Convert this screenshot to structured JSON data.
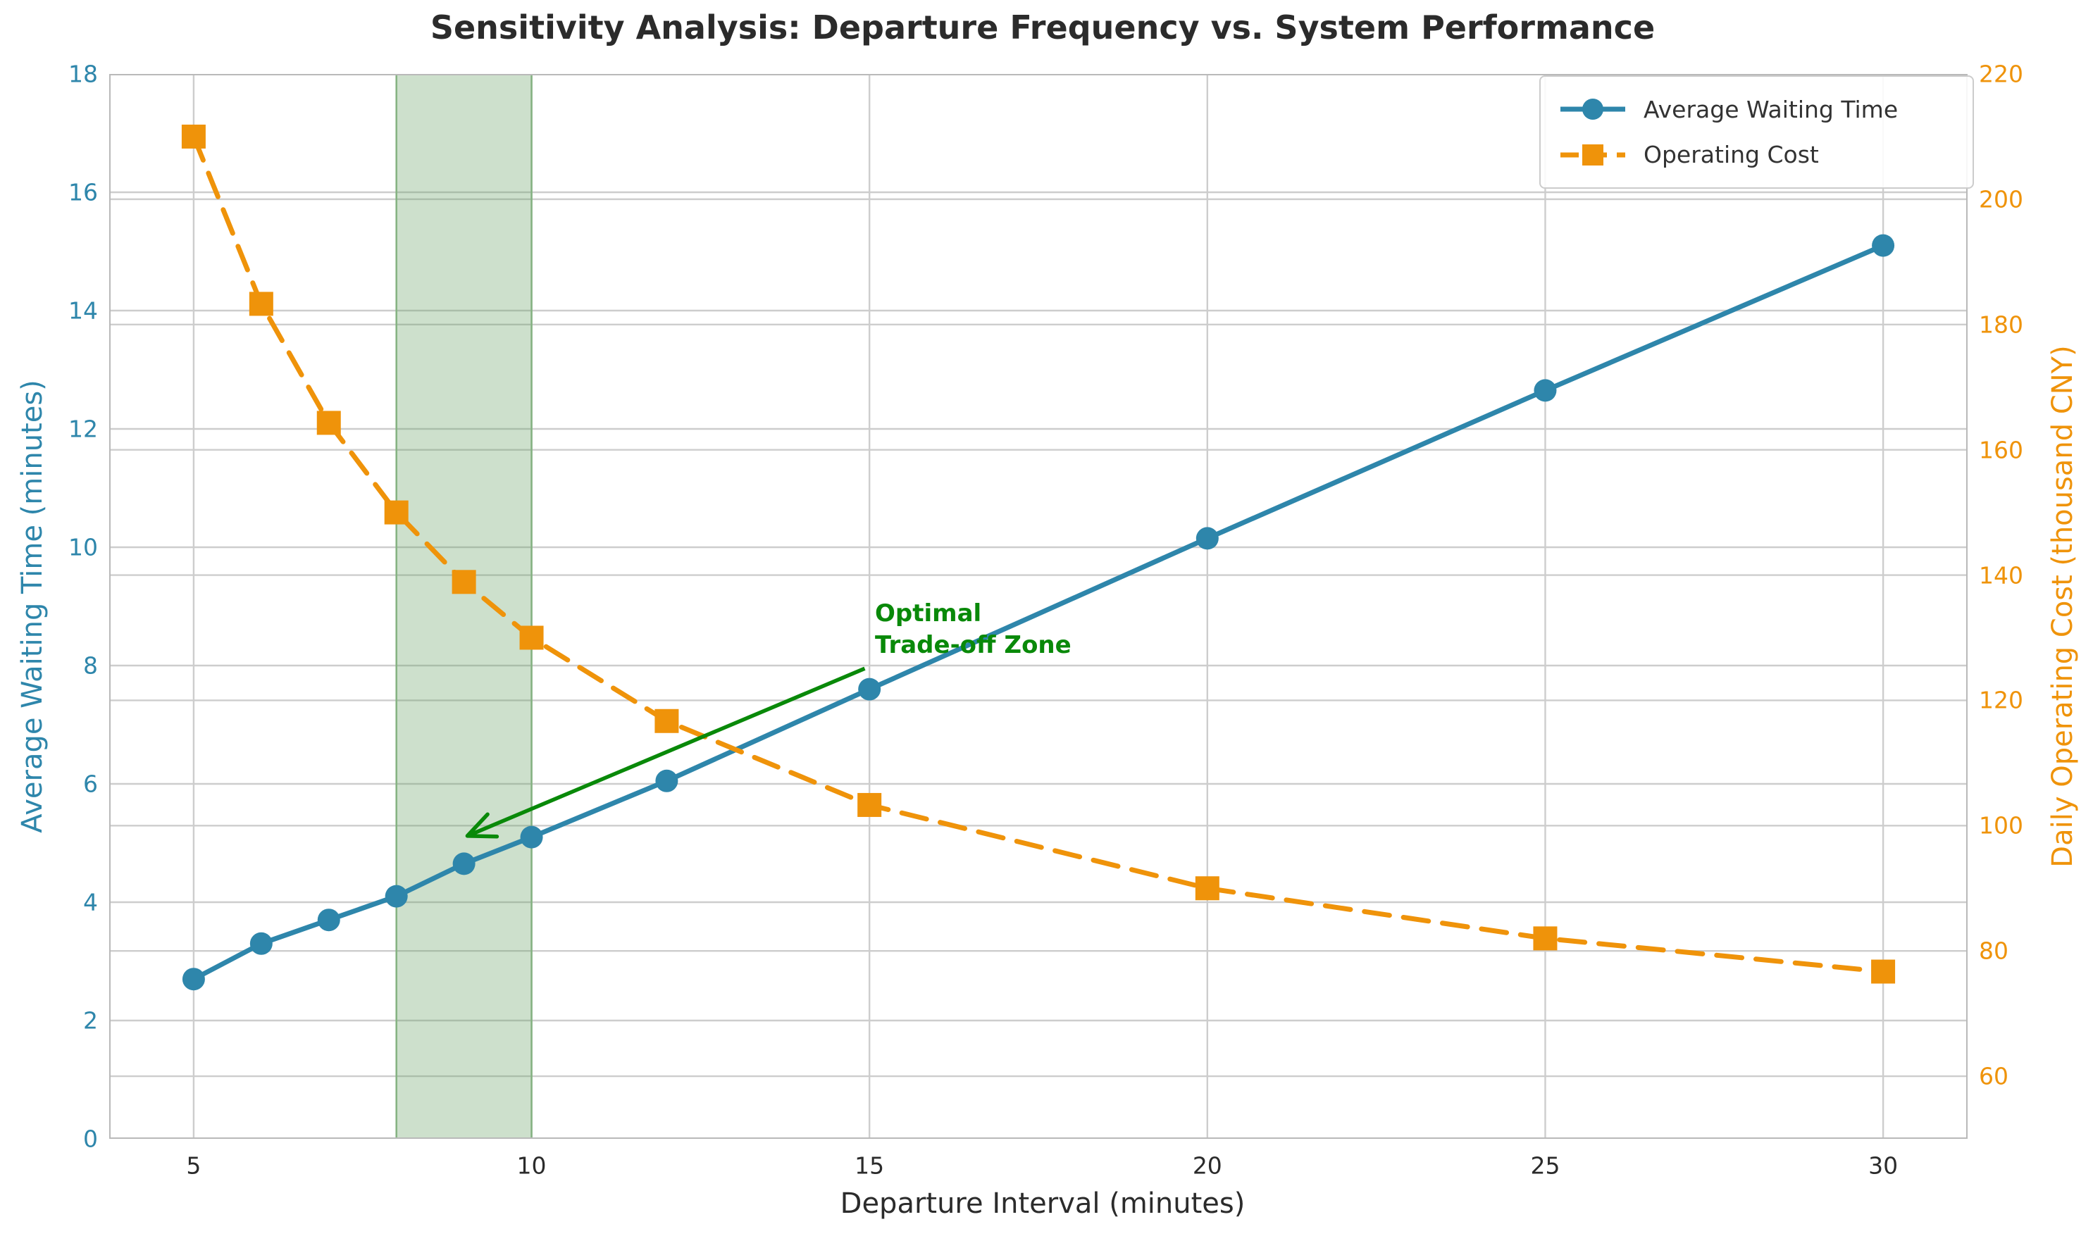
{
  "title": "Sensitivity Analysis: Departure Frequency vs. System Performance",
  "axes": {
    "x": {
      "label": "Departure Interval (minutes)",
      "min": 3.75,
      "max": 31.25,
      "ticks": [
        5,
        10,
        15,
        20,
        25,
        30
      ]
    },
    "y_left": {
      "label": "Average Waiting Time (minutes)",
      "min": 0,
      "max": 18,
      "ticks": [
        0,
        2,
        4,
        6,
        8,
        10,
        12,
        14,
        16,
        18
      ],
      "color": "#2E86AB"
    },
    "y_right": {
      "label": "Daily Operating Cost (thousand CNY)",
      "min": 50,
      "max": 220,
      "ticks": [
        60,
        80,
        100,
        120,
        140,
        160,
        180,
        200,
        220
      ],
      "color": "#EF930A"
    }
  },
  "chart_data": {
    "type": "line",
    "title": "Sensitivity Analysis: Departure Frequency vs. System Performance",
    "xlabel": "Departure Interval (minutes)",
    "ylabel_left": "Average Waiting Time (minutes)",
    "ylabel_right": "Daily Operating Cost (thousand CNY)",
    "x": [
      5,
      6,
      7,
      8,
      9,
      10,
      12,
      15,
      20,
      25,
      30
    ],
    "series": [
      {
        "name": "Average Waiting Time",
        "axis": "left",
        "color": "#2E86AB",
        "line_style": "solid",
        "marker": "circle",
        "values": [
          2.7,
          3.3,
          3.7,
          4.1,
          4.65,
          5.1,
          6.05,
          7.6,
          10.15,
          12.65,
          15.1
        ]
      },
      {
        "name": "Operating Cost",
        "axis": "right",
        "color": "#EF930A",
        "line_style": "dashed",
        "marker": "square",
        "values": [
          210.0,
          183.3,
          164.3,
          150.0,
          138.9,
          130.0,
          116.7,
          103.3,
          90.0,
          82.0,
          76.7
        ]
      }
    ],
    "highlight_band": {
      "x_start": 8,
      "x_end": 10,
      "fill_rgba": "rgba(100,160,95,0.32)",
      "edge_color": "#84b281"
    },
    "annotation": {
      "lines": [
        "Optimal",
        "Trade-off Zone"
      ],
      "color": "#098909",
      "text_x": 15,
      "text_y": 9.1,
      "arrow_from": {
        "x": 14.93,
        "y": 7.95
      },
      "arrow_to": {
        "x": 9.05,
        "y": 5.12
      }
    },
    "grid": true,
    "legend_position": "upper right",
    "grid_color": "#cdcdcd",
    "spine_color": "#b9b9b9"
  },
  "legend": {
    "items": [
      {
        "label": "Average Waiting Time"
      },
      {
        "label": "Operating Cost"
      }
    ]
  }
}
